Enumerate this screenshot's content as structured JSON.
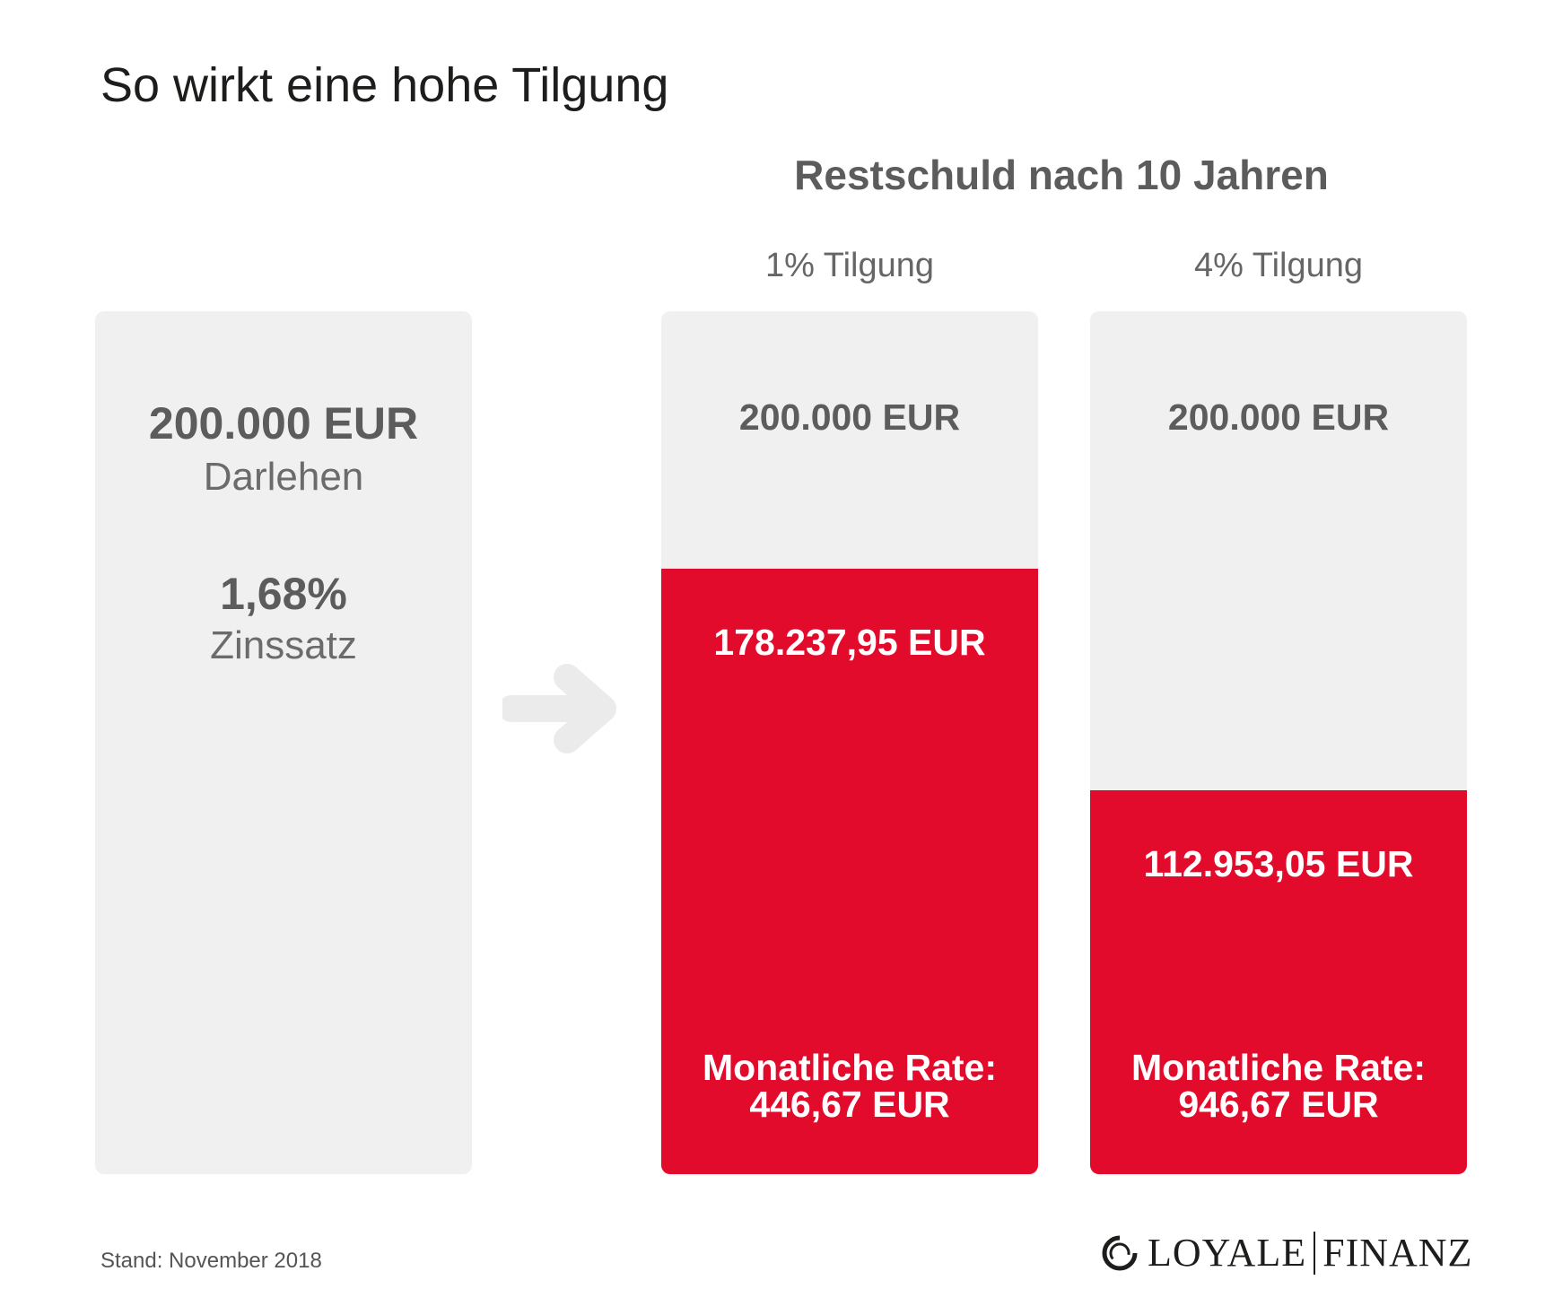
{
  "title": "So wirkt eine hohe Tilgung",
  "section_heading": "Restschuld nach 10 Jahren",
  "loan": {
    "amount": "200.000 EUR",
    "amount_label": "Darlehen",
    "rate": "1,68%",
    "rate_label": "Zinssatz"
  },
  "options": [
    {
      "label": "1% Tilgung",
      "principal": "200.000 EUR",
      "remaining": "178.237,95 EUR",
      "rate_label": "Monatliche Rate:",
      "rate_value": "446,67 EUR"
    },
    {
      "label": "4% Tilgung",
      "principal": "200.000 EUR",
      "remaining": "112.953,05 EUR",
      "rate_label": "Monatliche Rate:",
      "rate_value": "946,67 EUR"
    }
  ],
  "footnote": "Stand: November 2018",
  "logo": {
    "left": "LOYALE",
    "right": "FINANZ"
  },
  "colors": {
    "accent": "#e30b2b",
    "card_bg": "#f0f0f0",
    "text_gray": "#5c5c5c"
  },
  "icons": {
    "arrow": "arrow-right-icon",
    "logo_mark": "loyale-ring-icon"
  },
  "chart_data": {
    "type": "bar",
    "categories": [
      "1% Tilgung",
      "4% Tilgung"
    ],
    "series": [
      {
        "values": [
          178237.95,
          112953.05
        ]
      }
    ],
    "max_value": 200000,
    "title": "Restschuld nach 10 Jahren"
  }
}
